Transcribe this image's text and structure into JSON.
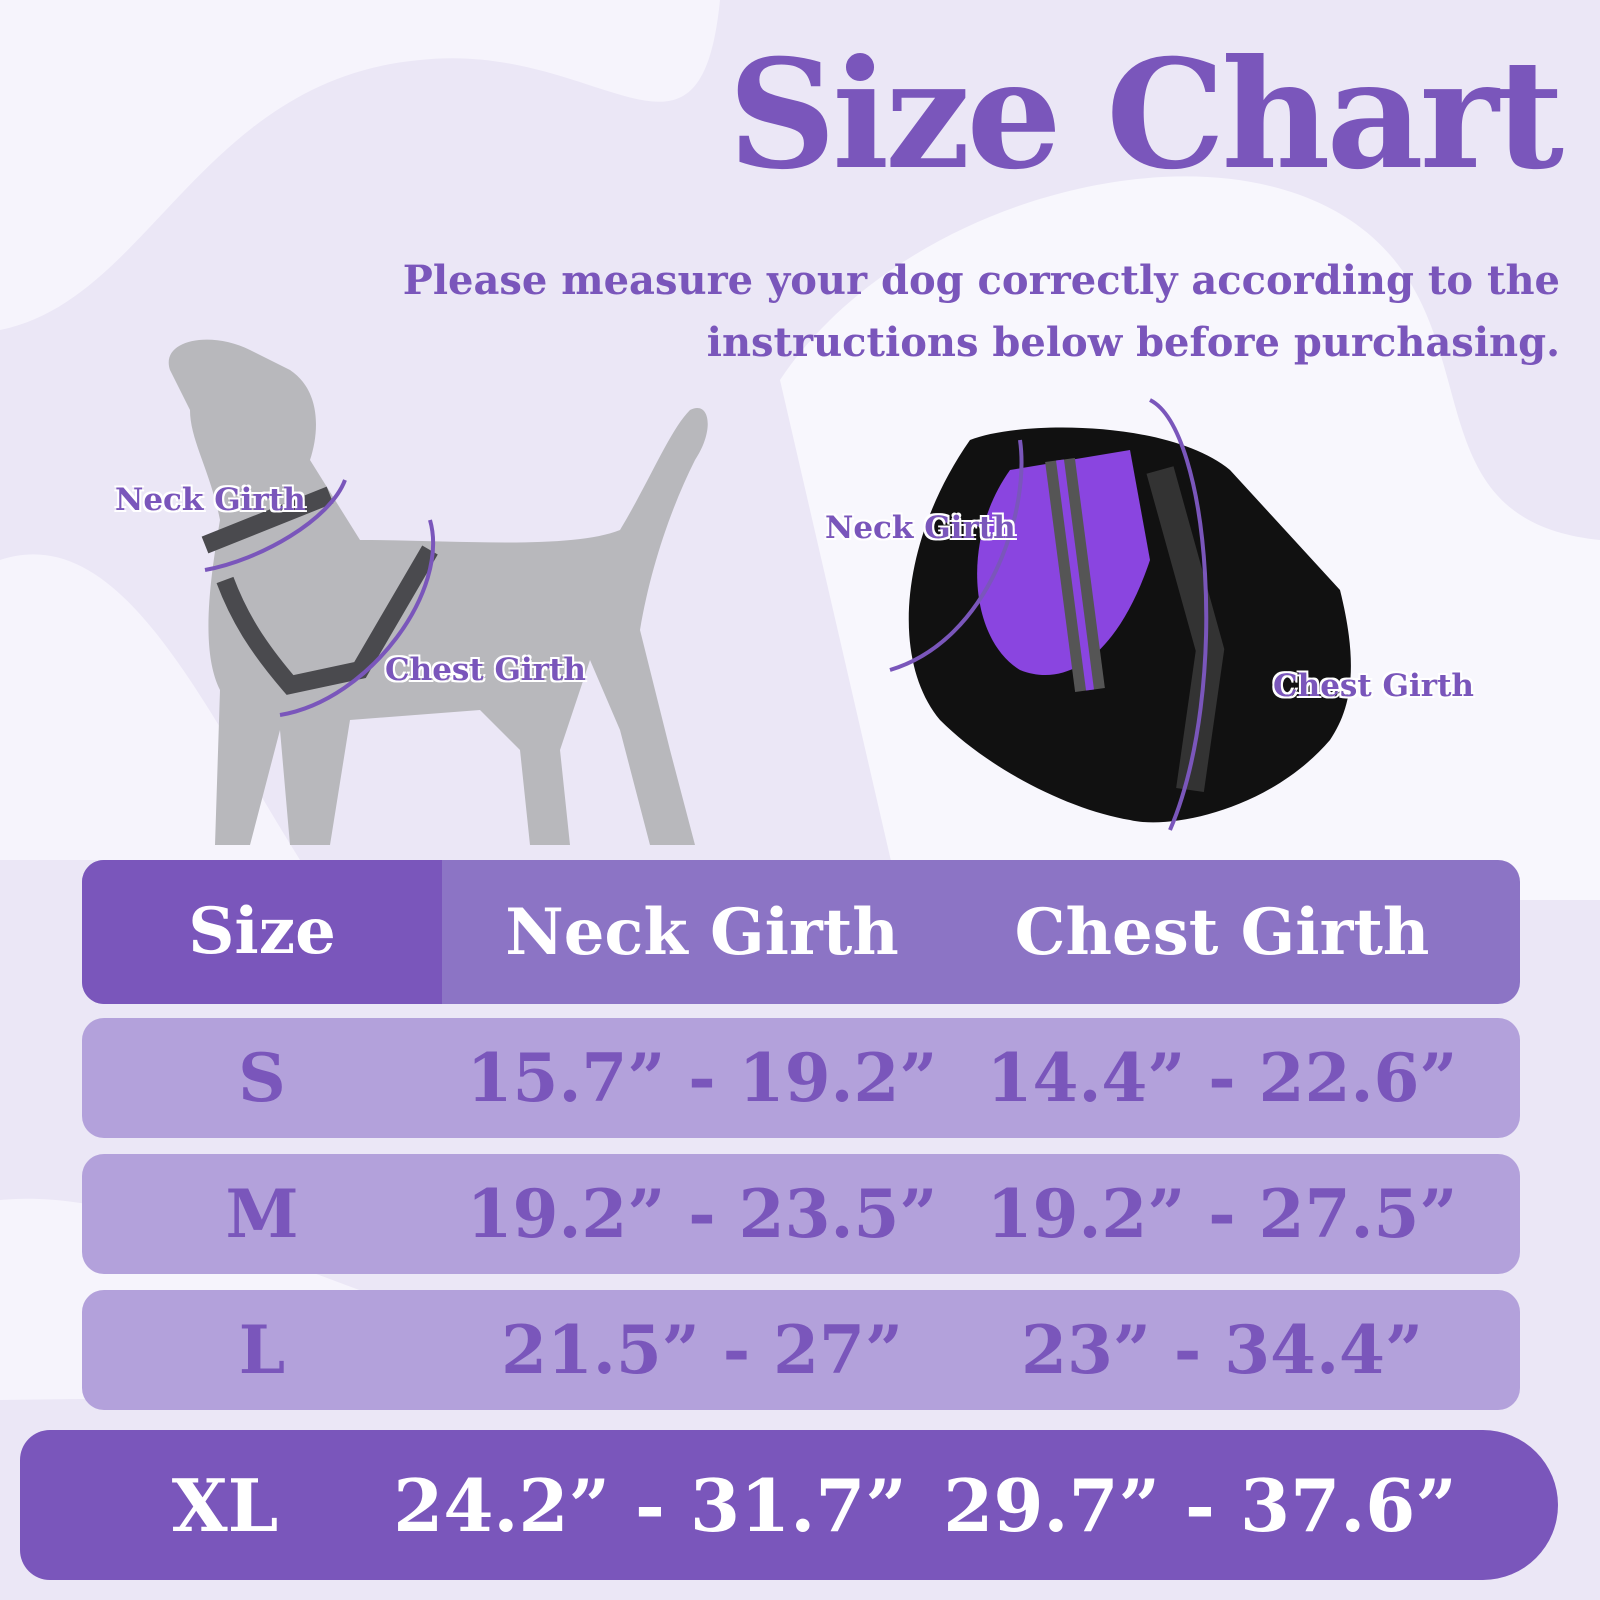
{
  "title": "Size Chart",
  "subtitle": "Please measure your dog correctly according to the instructions below before purchasing.",
  "dog_diagram": {
    "neck_label": "Neck Girth",
    "chest_label": "Chest Girth"
  },
  "harness_diagram": {
    "neck_label": "Neck Girth",
    "chest_label": "Chest Girth"
  },
  "colors": {
    "accent": "#7a56bb",
    "row": "#b3a1db",
    "header": "#8c74c5",
    "background": "#ebe7f6"
  },
  "table": {
    "headers": [
      "Size",
      "Neck Girth",
      "Chest Girth"
    ],
    "rows": [
      {
        "size": "S",
        "neck": "15.7” - 19.2”",
        "chest": "14.4” - 22.6”"
      },
      {
        "size": "M",
        "neck": "19.2” - 23.5”",
        "chest": "19.2” - 27.5”"
      },
      {
        "size": "L",
        "neck": "21.5” - 27”",
        "chest": "23” - 34.4”"
      },
      {
        "size": "XL",
        "neck": "24.2” - 31.7”",
        "chest": "29.7” - 37.6”"
      }
    ]
  }
}
